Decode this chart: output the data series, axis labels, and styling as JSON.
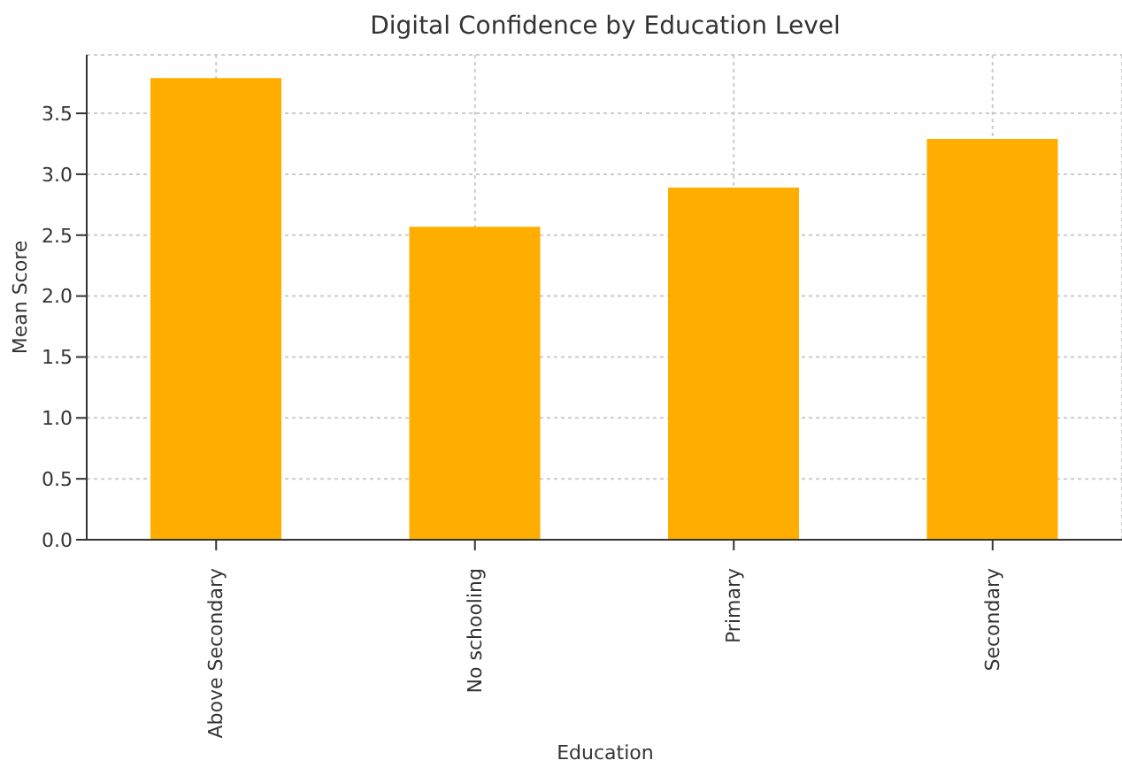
{
  "chart_data": {
    "type": "bar",
    "title": "Digital Confidence by Education Level",
    "xlabel": "Education",
    "ylabel": "Mean Score",
    "categories": [
      "Above Secondary",
      "No schooling",
      "Primary",
      "Secondary"
    ],
    "values": [
      3.79,
      2.57,
      2.89,
      3.29
    ],
    "color": "#ffae00",
    "ylim": [
      0,
      3.98
    ],
    "yticks": [
      {
        "value": 0,
        "label": "0.0"
      },
      0.5,
      {
        "value": 1,
        "label": "1.0"
      },
      1.5,
      {
        "value": 2,
        "label": "2.0"
      },
      2.5,
      {
        "value": 3,
        "label": "3.0"
      },
      3.5
    ],
    "grid": true
  }
}
